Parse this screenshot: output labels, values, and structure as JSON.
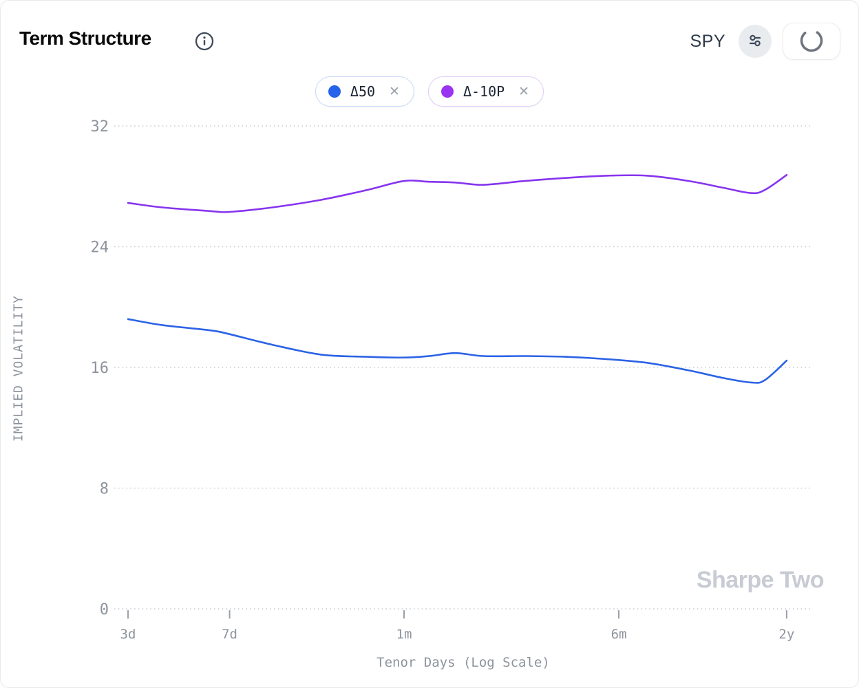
{
  "header": {
    "title": "Term Structure",
    "symbol": "SPY"
  },
  "icons": {
    "info": "info-circle",
    "settings": "sliders",
    "loading": "spinner-arc",
    "chip_close": "✕"
  },
  "legend": {
    "chips": [
      {
        "label": "Δ50",
        "dot_color": "#2563eb",
        "border_color": "#c9d7f8"
      },
      {
        "label": "Δ-10P",
        "dot_color": "#9a33f2",
        "border_color": "#e0ccf9"
      }
    ]
  },
  "watermark": "Sharpe Two",
  "colors": {
    "blue_line": "#2c63e5",
    "purple_line": "#8634ee",
    "grid": "#c9cdd4",
    "axis_text": "#8d939c",
    "tick_mark": "#9aa0a8"
  },
  "chart_data": {
    "type": "line",
    "title": "Term Structure",
    "xlabel": "Tenor Days (Log Scale)",
    "ylabel": "IMPLIED VOLATILITY",
    "x_scale": "log",
    "x_ticks": [
      "3d",
      "7d",
      "1m",
      "6m",
      "2y"
    ],
    "x_tick_days": [
      3,
      7,
      30,
      180,
      730
    ],
    "y_ticks": [
      0,
      8,
      16,
      24,
      32
    ],
    "ylim": [
      0,
      34.5
    ],
    "grid": "dotted-horizontal",
    "legend_position": "top-center",
    "x_days": [
      3,
      4,
      6,
      7,
      10,
      15,
      22,
      30,
      37,
      46,
      58,
      82,
      115,
      162,
      229,
      323,
      430,
      542,
      608,
      730
    ],
    "series": [
      {
        "name": "Δ50",
        "color": "#2c63e5",
        "values": [
          19.2,
          18.8,
          18.45,
          18.2,
          17.5,
          16.85,
          16.7,
          16.65,
          16.75,
          16.95,
          16.75,
          16.75,
          16.7,
          16.55,
          16.3,
          15.8,
          15.3,
          15.0,
          15.15,
          16.45
        ]
      },
      {
        "name": "Δ-10P",
        "color": "#8634ee",
        "values": [
          26.9,
          26.6,
          26.35,
          26.3,
          26.6,
          27.1,
          27.75,
          28.35,
          28.3,
          28.25,
          28.1,
          28.35,
          28.55,
          28.7,
          28.7,
          28.35,
          27.9,
          27.55,
          27.75,
          28.75
        ]
      }
    ]
  }
}
